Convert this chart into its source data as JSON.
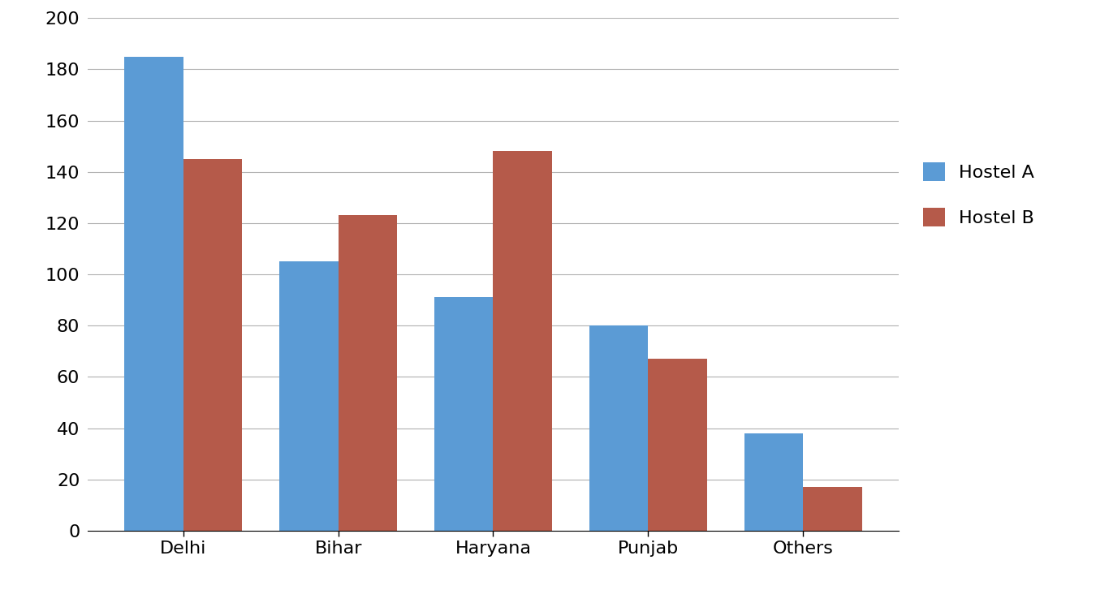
{
  "categories": [
    "Delhi",
    "Bihar",
    "Haryana",
    "Punjab",
    "Others"
  ],
  "hostel_a": [
    185,
    105,
    91,
    80,
    38
  ],
  "hostel_b": [
    145,
    123,
    148,
    67,
    17
  ],
  "color_a": "#5B9BD5",
  "color_b": "#B55A4A",
  "legend_labels": [
    "Hostel A",
    "Hostel B"
  ],
  "ylim": [
    0,
    200
  ],
  "yticks": [
    0,
    20,
    40,
    60,
    80,
    100,
    120,
    140,
    160,
    180,
    200
  ],
  "bar_width": 0.38,
  "figsize": [
    13.5,
    7.43
  ],
  "dpi": 100,
  "background_color": "#ffffff",
  "grid_color": "#b0b0b0",
  "tick_fontsize": 16,
  "legend_fontsize": 16,
  "xlabel_fontsize": 16
}
